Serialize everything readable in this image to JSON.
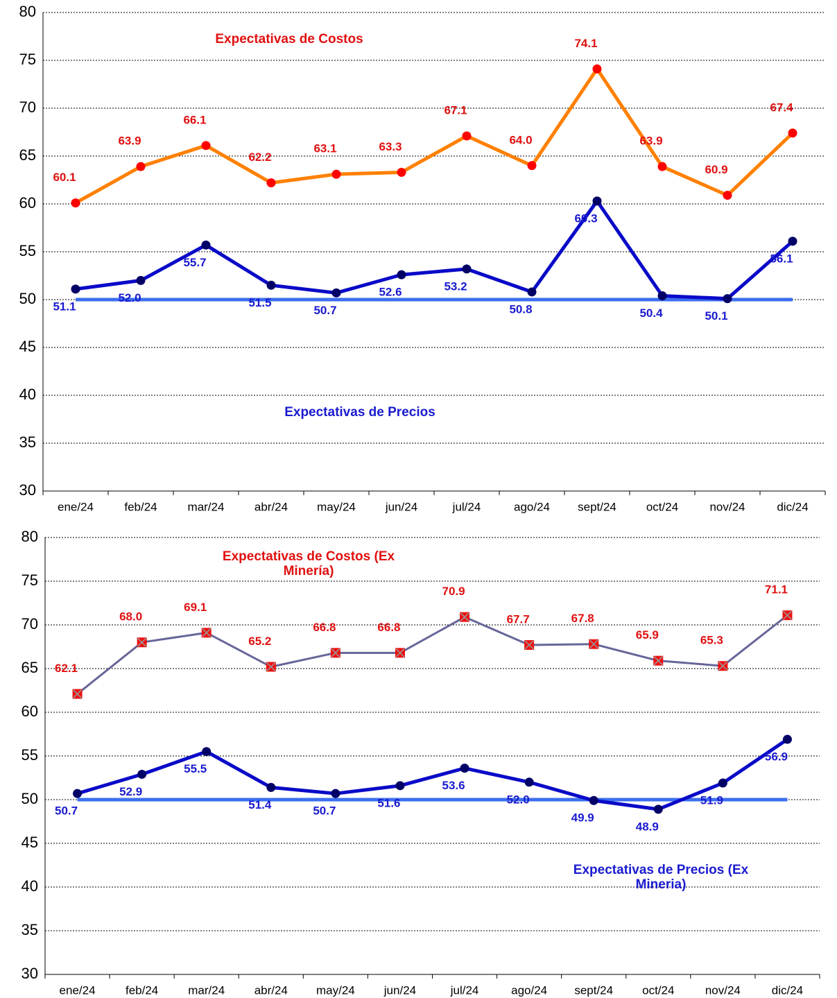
{
  "chart_data": [
    {
      "type": "line",
      "categories": [
        "ene/24",
        "feb/24",
        "mar/24",
        "abr/24",
        "may/24",
        "jun/24",
        "jul/24",
        "ago/24",
        "sept/24",
        "oct/24",
        "nov/24",
        "dic/24"
      ],
      "series": [
        {
          "name": "Expectativas de Costos",
          "color": "#ff8000",
          "marker_color": "#ff0000",
          "marker": "circle",
          "label_color": "#e01010",
          "label_side": "above",
          "values": [
            60.1,
            63.9,
            66.1,
            62.2,
            63.1,
            63.3,
            67.1,
            64.0,
            74.1,
            63.9,
            60.9,
            67.4
          ],
          "value_labels": [
            "60.1",
            "63.9",
            "66.1",
            "62.2",
            "63.1",
            "63.3",
            "67.1",
            "64.0",
            "74.1",
            "63.9",
            "60.9",
            "67.4"
          ]
        },
        {
          "name": "Expectativas de Precios",
          "color": "#0a0ac8",
          "marker_color": "#000066",
          "marker": "circle",
          "label_color": "#1a1ad0",
          "label_side": "below",
          "values": [
            51.1,
            52.0,
            55.7,
            51.5,
            50.7,
            52.6,
            53.2,
            50.8,
            60.3,
            50.4,
            50.1,
            56.1
          ],
          "value_labels": [
            "51.1",
            "52.0",
            "55.7",
            "51.5",
            "50.7",
            "52.6",
            "53.2",
            "50.8",
            "60.3",
            "50.4",
            "50.1",
            "56.1"
          ]
        }
      ],
      "reference_line": {
        "value": 50,
        "color": "#3c6ef0"
      },
      "ylim": [
        30,
        80
      ],
      "yticks": [
        30,
        35,
        40,
        45,
        50,
        55,
        60,
        65,
        70,
        75,
        80
      ],
      "grid": true
    },
    {
      "type": "line",
      "categories": [
        "ene/24",
        "feb/24",
        "mar/24",
        "abr/24",
        "may/24",
        "jun/24",
        "jul/24",
        "ago/24",
        "sept/24",
        "oct/24",
        "nov/24",
        "dic/24"
      ],
      "series": [
        {
          "name": "Expectativas de Costos (Ex Minería)",
          "color": "#666699",
          "marker_color": "#ee1111",
          "marker": "square-x",
          "label_color": "#e01010",
          "label_side": "above",
          "values": [
            62.1,
            68.0,
            69.1,
            65.2,
            66.8,
            66.8,
            70.9,
            67.7,
            67.8,
            65.9,
            65.3,
            71.1
          ],
          "value_labels": [
            "62.1",
            "68.0",
            "69.1",
            "65.2",
            "66.8",
            "66.8",
            "70.9",
            "67.7",
            "67.8",
            "65.9",
            "65.3",
            "71.1"
          ]
        },
        {
          "name": "Expectativas de Precios (Ex Mineria)",
          "color": "#0a0ac8",
          "marker_color": "#000066",
          "marker": "circle",
          "label_color": "#1a1ad0",
          "label_side": "below",
          "values": [
            50.7,
            52.9,
            55.5,
            51.4,
            50.7,
            51.6,
            53.6,
            52.0,
            49.9,
            48.9,
            51.9,
            56.9
          ],
          "value_labels": [
            "50.7",
            "52.9",
            "55.5",
            "51.4",
            "50.7",
            "51.6",
            "53.6",
            "52.0",
            "49.9",
            "48.9",
            "51.9",
            "56.9"
          ]
        }
      ],
      "reference_line": {
        "value": 50,
        "color": "#3c6ef0"
      },
      "ylim": [
        30,
        80
      ],
      "yticks": [
        30,
        35,
        40,
        45,
        50,
        55,
        60,
        65,
        70,
        75,
        80
      ],
      "grid": true
    }
  ]
}
